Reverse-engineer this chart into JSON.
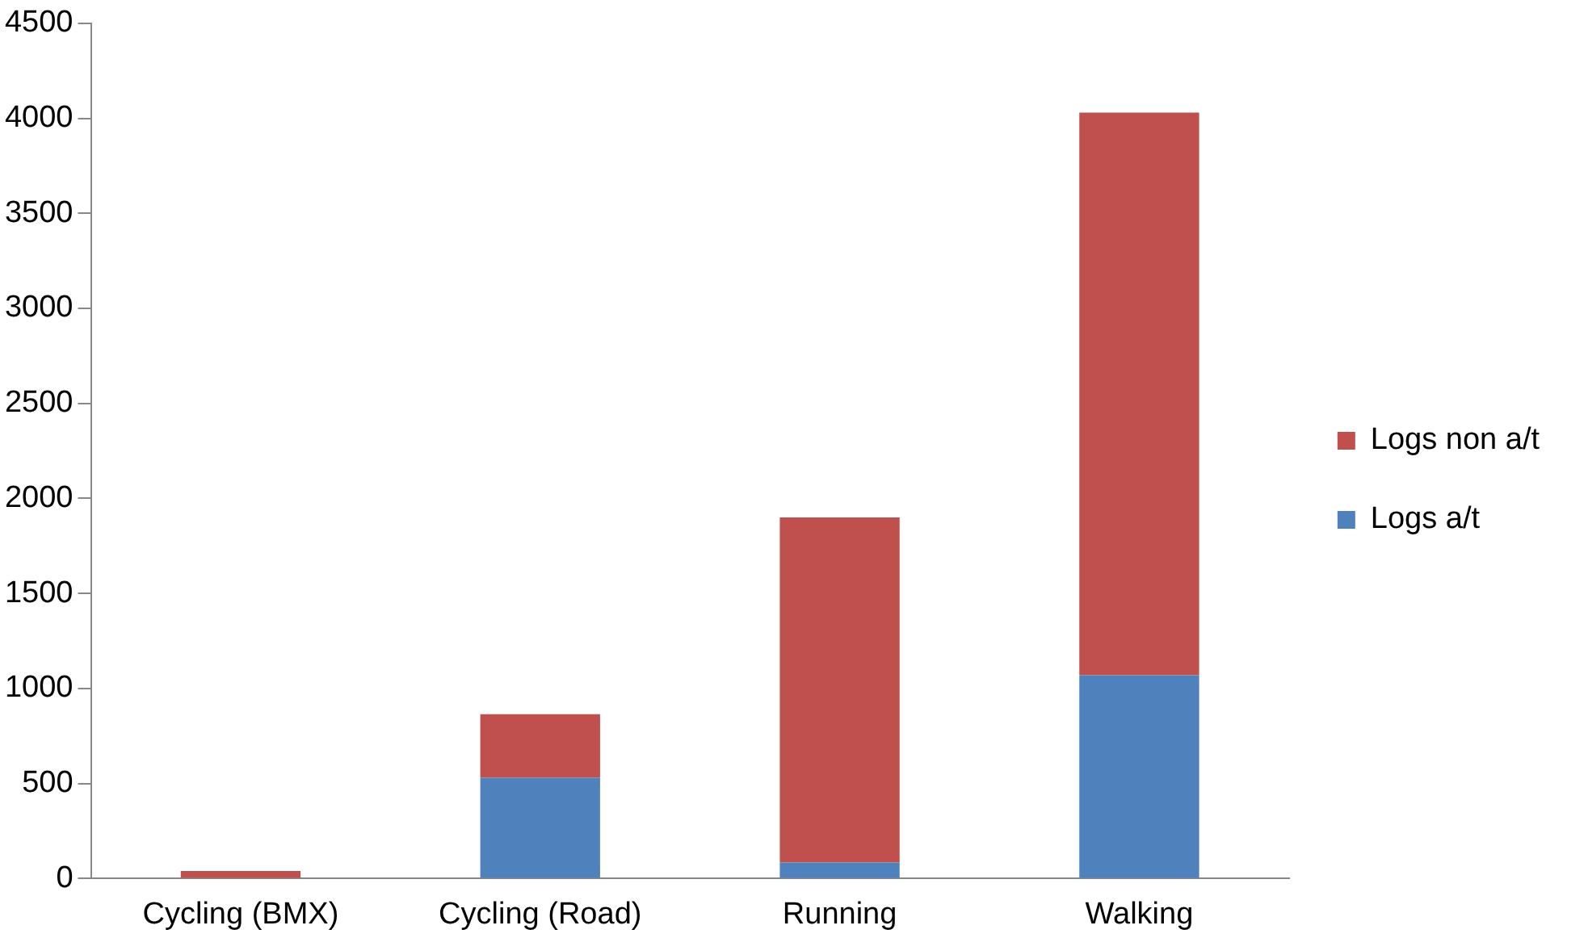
{
  "chart_data": {
    "type": "bar",
    "stacked": true,
    "categories": [
      "Cycling (BMX)",
      "Cycling (Road)",
      "Running",
      "Walking"
    ],
    "series": [
      {
        "name": "Logs a/t",
        "color": "#4f81bd",
        "values": [
          0,
          530,
          85,
          1070
        ]
      },
      {
        "name": "Logs non a/t",
        "color": "#c0504d",
        "values": [
          40,
          335,
          1815,
          2960
        ]
      }
    ],
    "ylim": [
      0,
      4500
    ],
    "yticks": [
      0,
      500,
      1000,
      1500,
      2000,
      2500,
      3000,
      3500,
      4000,
      4500
    ],
    "grid": false,
    "legend": "right"
  }
}
